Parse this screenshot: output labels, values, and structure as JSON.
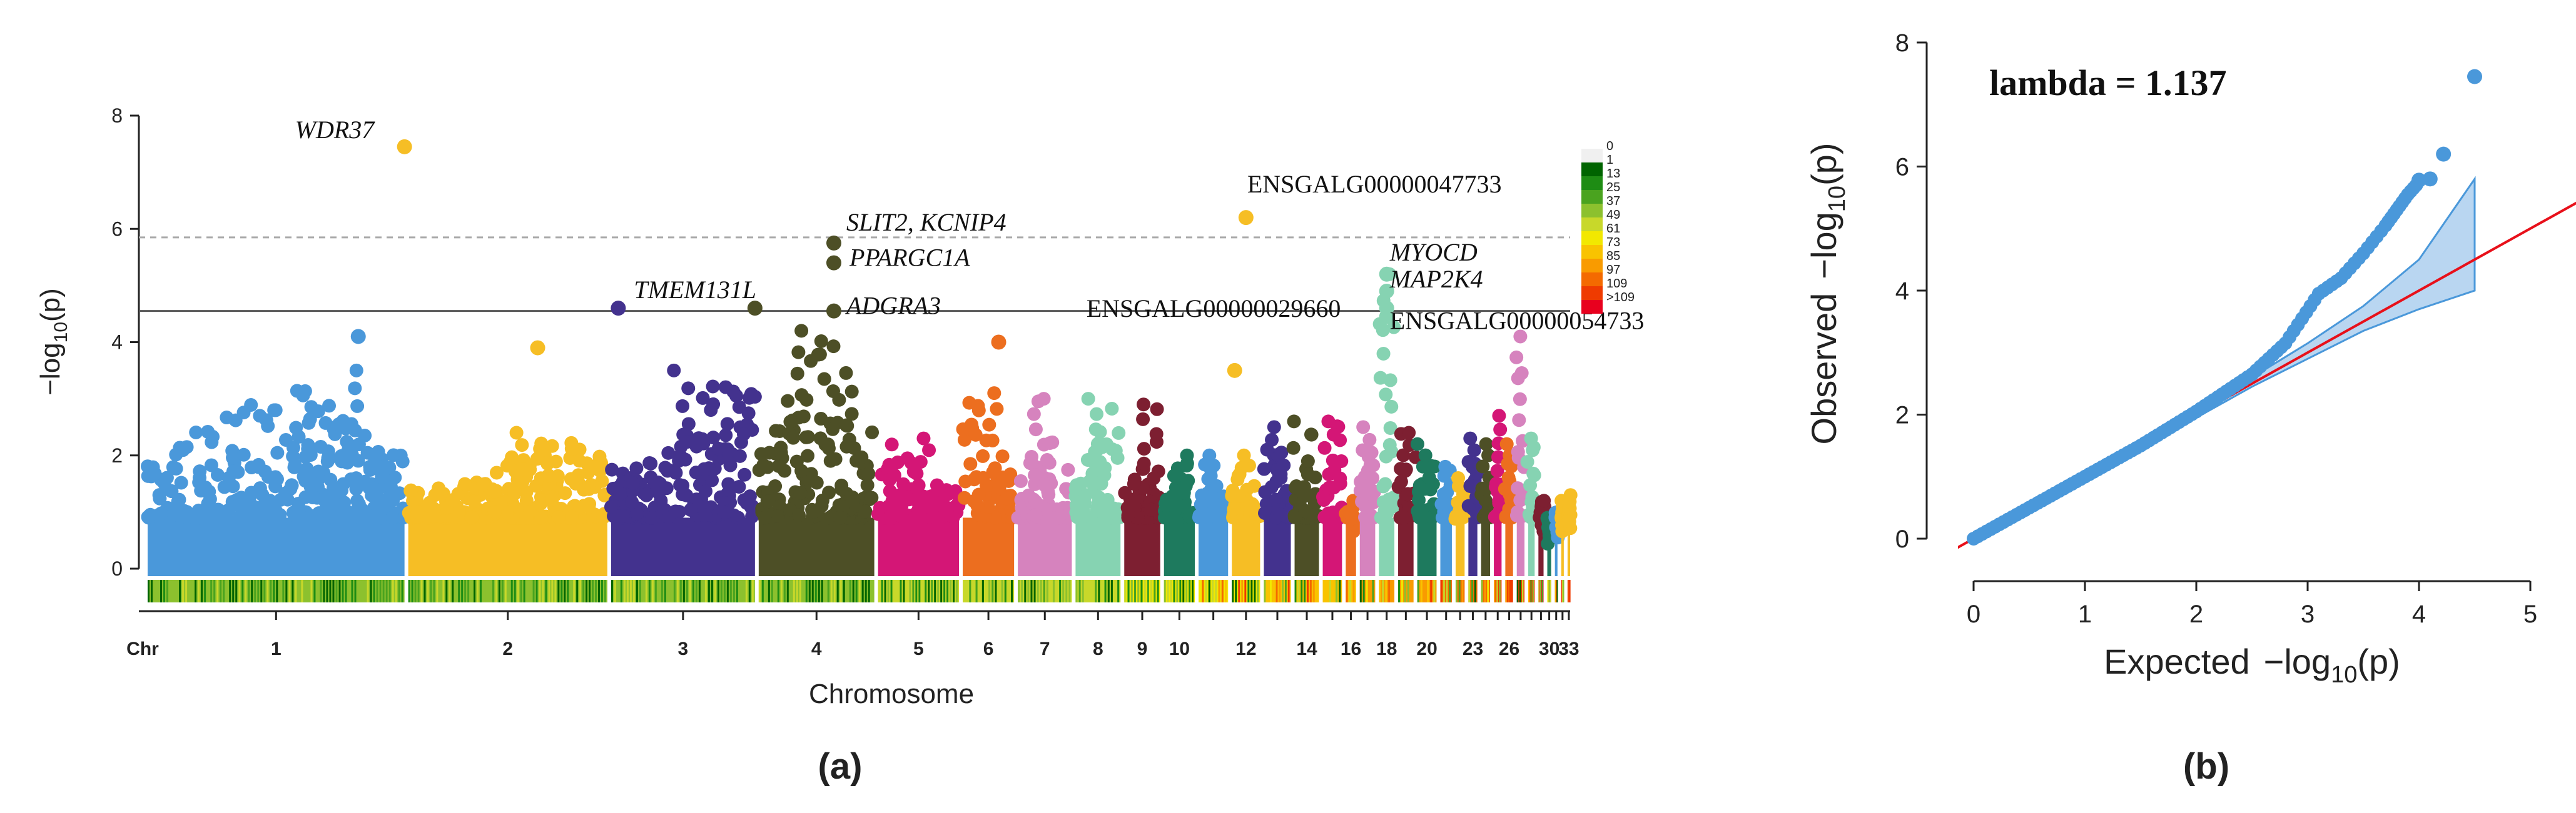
{
  "chart_data": [
    {
      "type": "scatter",
      "subtype": "manhattan",
      "panel_label": "(a)",
      "xlabel": "Chromosome",
      "ylabel": "−log",
      "ylabel_sub": "10",
      "ylabel_tail": "(p)",
      "chr_axis_label": "Chr",
      "ylim": [
        0,
        8
      ],
      "yticks": [
        "0",
        "2",
        "4",
        "6",
        "8"
      ],
      "suggestive_line": 5.85,
      "significance_line": 4.55,
      "chromosomes": [
        {
          "label": "1",
          "show": true,
          "size": 200,
          "color": "#4A98DA",
          "peak": 3.5
        },
        {
          "label": "2",
          "show": true,
          "size": 155,
          "color": "#F6BE25",
          "peak": 2.4
        },
        {
          "label": "3",
          "show": true,
          "size": 112,
          "color": "#43328E",
          "peak": 3.5
        },
        {
          "label": "4",
          "show": true,
          "size": 90,
          "color": "#4D4F26",
          "peak": 4.2
        },
        {
          "label": "5",
          "show": true,
          "size": 63,
          "color": "#D41676",
          "peak": 2.3
        },
        {
          "label": "6",
          "show": true,
          "size": 40,
          "color": "#EC6E1F",
          "peak": 3.1
        },
        {
          "label": "7",
          "show": true,
          "size": 42,
          "color": "#D683BE",
          "peak": 3.0
        },
        {
          "label": "8",
          "show": true,
          "size": 35,
          "color": "#86D3B2",
          "peak": 3.0
        },
        {
          "label": "9",
          "show": true,
          "size": 28,
          "color": "#7D1F31",
          "peak": 2.9
        },
        {
          "label": "10",
          "show": true,
          "size": 24,
          "color": "#1E7A5E",
          "peak": 2.0
        },
        {
          "label": "",
          "show": false,
          "size": 23,
          "color": "#4A98DA",
          "peak": 2.0
        },
        {
          "label": "12",
          "show": true,
          "size": 22,
          "color": "#F6BE25",
          "peak": 2.0
        },
        {
          "label": "",
          "show": false,
          "size": 21,
          "color": "#43328E",
          "peak": 2.5
        },
        {
          "label": "14",
          "show": true,
          "size": 19,
          "color": "#4D4F26",
          "peak": 2.6
        },
        {
          "label": "",
          "show": false,
          "size": 15,
          "color": "#D41676",
          "peak": 2.6
        },
        {
          "label": "16",
          "show": true,
          "size": 8,
          "color": "#EC6E1F",
          "peak": 1.2
        },
        {
          "label": "",
          "show": false,
          "size": 12,
          "color": "#D683BE",
          "peak": 2.5
        },
        {
          "label": "18",
          "show": true,
          "size": 12,
          "color": "#86D3B2",
          "peak": 5.2
        },
        {
          "label": "",
          "show": false,
          "size": 12,
          "color": "#7D1F31",
          "peak": 2.4
        },
        {
          "label": "20",
          "show": true,
          "size": 15,
          "color": "#1E7A5E",
          "peak": 2.2
        },
        {
          "label": "",
          "show": false,
          "size": 9,
          "color": "#4A98DA",
          "peak": 1.8
        },
        {
          "label": "",
          "show": false,
          "size": 7,
          "color": "#F6BE25",
          "peak": 1.6
        },
        {
          "label": "23",
          "show": true,
          "size": 7,
          "color": "#43328E",
          "peak": 2.3
        },
        {
          "label": "",
          "show": false,
          "size": 7,
          "color": "#4D4F26",
          "peak": 2.2
        },
        {
          "label": "",
          "show": false,
          "size": 6,
          "color": "#D41676",
          "peak": 2.7
        },
        {
          "label": "26",
          "show": true,
          "size": 6,
          "color": "#EC6E1F",
          "peak": 2.2
        },
        {
          "label": "",
          "show": false,
          "size": 6,
          "color": "#D683BE",
          "peak": 4.1
        },
        {
          "label": "",
          "show": false,
          "size": 5,
          "color": "#86D3B2",
          "peak": 2.3
        },
        {
          "label": "",
          "show": false,
          "size": 4,
          "color": "#7D1F31",
          "peak": 1.2
        },
        {
          "label": "30",
          "show": true,
          "size": 3,
          "color": "#1E7A5E",
          "peak": 0.8
        },
        {
          "label": "",
          "show": false,
          "size": 2,
          "color": "#4A98DA",
          "peak": 1.0
        },
        {
          "label": "",
          "show": false,
          "size": 2,
          "color": "#F6BE25",
          "peak": 1.2
        },
        {
          "label": "33",
          "show": true,
          "size": 2,
          "color": "#F6BE25",
          "peak": 1.3
        }
      ],
      "highlighted_snps": [
        {
          "gene": "WDR37",
          "chr": "1",
          "pos": 1.0,
          "y": 7.45,
          "color": "#F6BE25",
          "italic": true
        },
        {
          "gene": "TMEM131L",
          "chr": "3",
          "pos": 0.05,
          "y": 4.6,
          "color": "#43328E",
          "italic": true
        },
        {
          "gene": "",
          "chr": "3",
          "pos": 1.0,
          "y": 4.6,
          "color": "#4D4F26",
          "italic": true
        },
        {
          "gene": "SLIT2, KCNIP4",
          "chr": "4",
          "pos": 0.65,
          "y": 5.75,
          "color": "#4D4F26",
          "italic": true
        },
        {
          "gene": "PPARGC1A",
          "chr": "4",
          "pos": 0.65,
          "y": 5.4,
          "color": "#4D4F26",
          "italic": true
        },
        {
          "gene": "ADGRA3",
          "chr": "4",
          "pos": 0.65,
          "y": 4.55,
          "color": "#4D4F26",
          "italic": true
        },
        {
          "gene": "ENSGALG00000047733",
          "chr": "12",
          "pos": 0.5,
          "y": 6.2,
          "color": "#F6BE25",
          "italic": false
        },
        {
          "gene": "ENSGALG00000029660",
          "chr": "18",
          "pos": 0.5,
          "y": 4.6,
          "color": "#86D3B2",
          "italic": false
        },
        {
          "gene": "MYOCD",
          "chr": "18",
          "pos": 0.5,
          "y": 5.2,
          "color": "#86D3B2",
          "italic": true
        },
        {
          "gene": "MAP2K4",
          "chr": "18",
          "pos": 0.5,
          "y": 4.9,
          "color": "#86D3B2",
          "italic": true
        },
        {
          "gene": "ENSGALG00000054733",
          "chr": "18",
          "pos": 0.5,
          "y": 4.45,
          "color": "#86D3B2",
          "italic": false
        }
      ],
      "extra_points": [
        {
          "chr": "1",
          "pos": 0.82,
          "y": 4.1,
          "color": "#4A98DA"
        },
        {
          "chr": "2",
          "pos": 0.65,
          "y": 3.9,
          "color": "#F6BE25"
        },
        {
          "chr": "6",
          "pos": 0.7,
          "y": 4.0,
          "color": "#EC6E1F"
        },
        {
          "chr": "12",
          "pos": 0.1,
          "y": 3.5,
          "color": "#F6BE25"
        }
      ],
      "density_legend": {
        "title": "",
        "bins": [
          {
            "label": "0",
            "color": "#f0f0f0"
          },
          {
            "label": "1",
            "color": "#006400"
          },
          {
            "label": "13",
            "color": "#1e8c14"
          },
          {
            "label": "25",
            "color": "#4aa31f"
          },
          {
            "label": "37",
            "color": "#8cc12e"
          },
          {
            "label": "49",
            "color": "#c8d82a"
          },
          {
            "label": "61",
            "color": "#f2e800"
          },
          {
            "label": "73",
            "color": "#f9c300"
          },
          {
            "label": "85",
            "color": "#f99b00"
          },
          {
            "label": "97",
            "color": "#f46a00"
          },
          {
            "label": "109",
            "color": "#ef3b00"
          },
          {
            "label": ">109",
            "color": "#e8001e"
          }
        ]
      }
    },
    {
      "type": "scatter",
      "subtype": "qq",
      "panel_label": "(b)",
      "annotation": "lambda = 1.137",
      "xlabel": "Expected",
      "ylabel": "Observed",
      "log_label": "−log",
      "log_sub": "10",
      "log_tail": "(p)",
      "xlim": [
        0,
        5
      ],
      "ylim": [
        0,
        8
      ],
      "xticks": [
        "0",
        "1",
        "2",
        "3",
        "4",
        "5"
      ],
      "yticks": [
        "0",
        "2",
        "4",
        "6",
        "8"
      ],
      "reference_line": "y = x",
      "points_curve": [
        [
          0,
          0
        ],
        [
          0.5,
          0.5
        ],
        [
          1.0,
          1.0
        ],
        [
          1.5,
          1.5
        ],
        [
          2.0,
          2.05
        ],
        [
          2.5,
          2.65
        ],
        [
          2.8,
          3.15
        ],
        [
          3.1,
          3.95
        ],
        [
          3.3,
          4.2
        ],
        [
          3.5,
          4.6
        ],
        [
          3.7,
          5.05
        ],
        [
          3.8,
          5.3
        ],
        [
          3.9,
          5.55
        ],
        [
          4.0,
          5.75
        ]
      ],
      "top_points": [
        [
          4.0,
          5.78
        ],
        [
          4.1,
          5.8
        ],
        [
          4.22,
          6.2
        ],
        [
          4.5,
          7.45
        ]
      ],
      "confidence_band": {
        "x": [
          2.0,
          2.5,
          3.0,
          3.5,
          4.0,
          4.5
        ],
        "lower": [
          1.95,
          2.45,
          2.9,
          3.35,
          3.7,
          4.0
        ],
        "upper": [
          2.05,
          2.6,
          3.15,
          3.75,
          4.5,
          5.8
        ]
      }
    }
  ]
}
